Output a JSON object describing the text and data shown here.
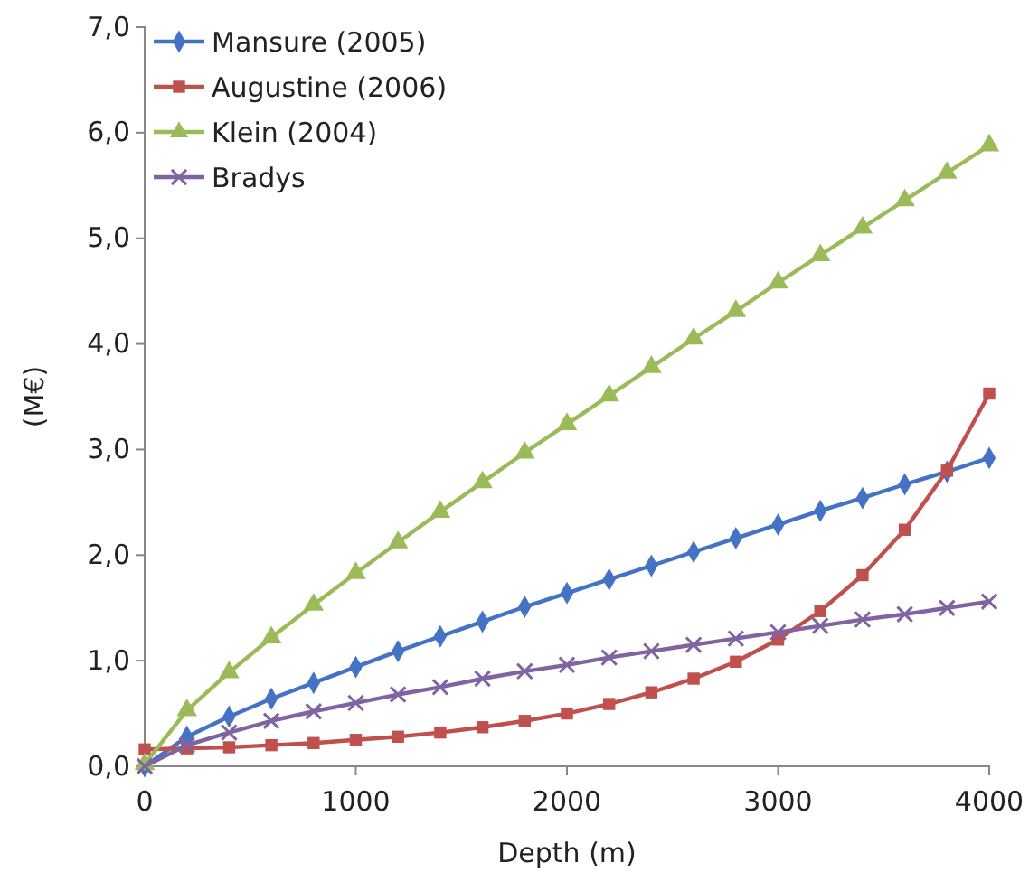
{
  "chart_data": {
    "type": "line",
    "xlabel": "Depth (m)",
    "ylabel": "(M€)",
    "x": [
      0,
      200,
      400,
      600,
      800,
      1000,
      1200,
      1400,
      1600,
      1800,
      2000,
      2200,
      2400,
      2600,
      2800,
      3000,
      3200,
      3400,
      3600,
      3800,
      4000
    ],
    "xlim": [
      0,
      4000
    ],
    "xticks": [
      0,
      1000,
      2000,
      3000,
      4000
    ],
    "ylim": [
      0,
      7
    ],
    "yticks": [
      {
        "value": 0,
        "label": "0,0"
      },
      {
        "value": 1,
        "label": "1,0"
      },
      {
        "value": 2,
        "label": "2,0"
      },
      {
        "value": 3,
        "label": "3,0"
      },
      {
        "value": 4,
        "label": "4,0"
      },
      {
        "value": 5,
        "label": "5,0"
      },
      {
        "value": 6,
        "label": "6,0"
      },
      {
        "value": 7,
        "label": "7,0"
      }
    ],
    "grid": false,
    "legend": "top left",
    "line_style": "solid",
    "series": [
      {
        "name": "Mansure (2005)",
        "color": "#4472c4",
        "marker": "diamond",
        "values": [
          0,
          0.28,
          0.47,
          0.64,
          0.79,
          0.94,
          1.09,
          1.23,
          1.37,
          1.51,
          1.64,
          1.77,
          1.9,
          2.03,
          2.16,
          2.29,
          2.42,
          2.54,
          2.67,
          2.79,
          2.92
        ]
      },
      {
        "name": "Augustine (2006)",
        "color": "#c0504d",
        "marker": "square",
        "values": [
          0.16,
          0.17,
          0.18,
          0.2,
          0.22,
          0.25,
          0.28,
          0.32,
          0.37,
          0.43,
          0.5,
          0.59,
          0.7,
          0.83,
          0.99,
          1.2,
          1.47,
          1.81,
          2.24,
          2.8,
          3.53
        ]
      },
      {
        "name": "Klein (2004)",
        "color": "#9bbb59",
        "marker": "triangle",
        "values": [
          0.02,
          0.53,
          0.89,
          1.22,
          1.53,
          1.83,
          2.12,
          2.41,
          2.69,
          2.97,
          3.24,
          3.51,
          3.78,
          4.05,
          4.31,
          4.58,
          4.84,
          5.1,
          5.36,
          5.62,
          5.88
        ]
      },
      {
        "name": "Bradys",
        "color": "#8064a2",
        "marker": "cross",
        "values": [
          0,
          0.2,
          0.32,
          0.43,
          0.52,
          0.6,
          0.68,
          0.75,
          0.83,
          0.9,
          0.96,
          1.03,
          1.09,
          1.15,
          1.21,
          1.27,
          1.33,
          1.39,
          1.44,
          1.5,
          1.56
        ]
      }
    ]
  }
}
